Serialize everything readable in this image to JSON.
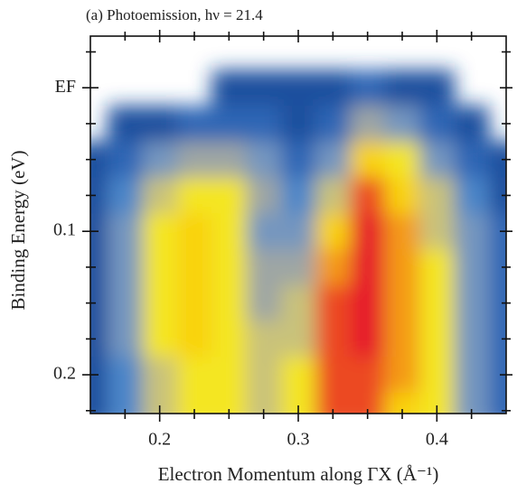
{
  "chart_data": {
    "type": "contour",
    "title": "(a) Photoemission, hν = 21.4",
    "x_label": "Electron Momentum along ΓX (Å⁻¹)",
    "y_label": "Binding Energy (eV)",
    "x": [
      0.15,
      0.175,
      0.2,
      0.225,
      0.25,
      0.275,
      0.3,
      0.325,
      0.35,
      0.375,
      0.4,
      0.425,
      0.45
    ],
    "y": [
      -0.025,
      0,
      0.025,
      0.05,
      0.075,
      0.1,
      0.125,
      0.15,
      0.175,
      0.2,
      0.225
    ],
    "z": [
      [
        null,
        null,
        null,
        null,
        null,
        null,
        null,
        null,
        null,
        null,
        null,
        null,
        null
      ],
      [
        null,
        null,
        null,
        null,
        0,
        0,
        0,
        0,
        1,
        0,
        0,
        null,
        null
      ],
      [
        null,
        0,
        0,
        1,
        1,
        1,
        0,
        1,
        4,
        3,
        1,
        0,
        null
      ],
      [
        0,
        1,
        3,
        4,
        4,
        3,
        1,
        3,
        7,
        6,
        3,
        1,
        0
      ],
      [
        0,
        2,
        5,
        6,
        6,
        4,
        2,
        5,
        9,
        7,
        5,
        2,
        0
      ],
      [
        0,
        3,
        6,
        7,
        6,
        3,
        3,
        7,
        10,
        8,
        5,
        3,
        1
      ],
      [
        0,
        3,
        6,
        7,
        6,
        4,
        4,
        8,
        10,
        8,
        6,
        3,
        1
      ],
      [
        0,
        3,
        6,
        7,
        6,
        4,
        5,
        9,
        10,
        8,
        6,
        3,
        1
      ],
      [
        0,
        3,
        6,
        7,
        6,
        5,
        5,
        9,
        10,
        8,
        6,
        3,
        1
      ],
      [
        0,
        2,
        5,
        6,
        6,
        5,
        6,
        9,
        9,
        8,
        6,
        3,
        1
      ],
      [
        0,
        2,
        5,
        6,
        6,
        5,
        6,
        9,
        9,
        7,
        6,
        3,
        1
      ]
    ],
    "colorscale": [
      "#1c4f9e",
      "#2f66b5",
      "#4c86c9",
      "#7496bf",
      "#9ea6a4",
      "#c9c27a",
      "#f4e623",
      "#f9d20f",
      "#f49a14",
      "#ec4a22",
      "#e6142c"
    ],
    "xlim": [
      0.15,
      0.45
    ],
    "ylim": [
      -0.036,
      0.227
    ],
    "y_inverted": true,
    "xticks": [
      0.2,
      0.3,
      0.4
    ],
    "yticks": [
      {
        "value": 0,
        "label": "EF"
      },
      0.1,
      0.2
    ],
    "xminorticks": [
      0.175,
      0.225,
      0.25,
      0.275,
      0.325,
      0.35,
      0.375,
      0.425
    ],
    "yminorticks": [
      -0.025,
      0.025,
      0.05,
      0.075,
      0.125,
      0.15,
      0.175,
      0.225
    ]
  }
}
